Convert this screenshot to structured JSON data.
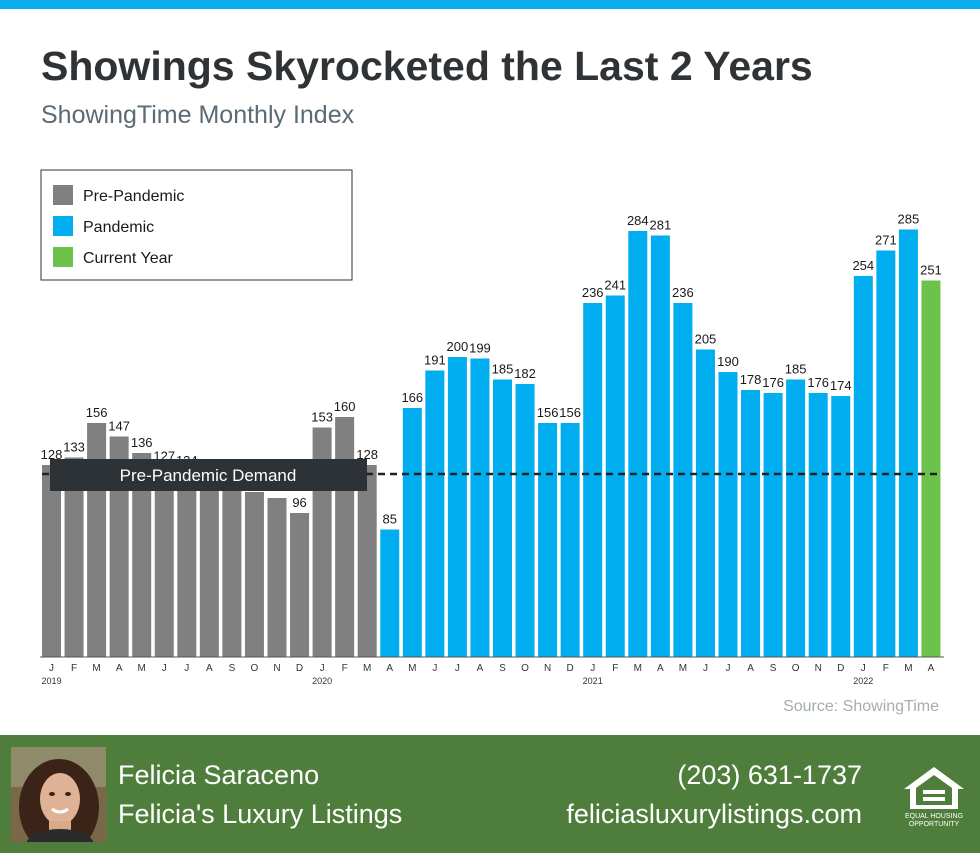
{
  "header": {
    "title": "Showings Skyrocketed the Last 2 Years",
    "subtitle": "ShowingTime Monthly Index"
  },
  "chart_data": {
    "type": "bar",
    "categories": [
      "J",
      "F",
      "M",
      "A",
      "M",
      "J",
      "J",
      "A",
      "S",
      "O",
      "N",
      "D",
      "J",
      "F",
      "M",
      "A",
      "M",
      "J",
      "J",
      "A",
      "S",
      "O",
      "N",
      "D",
      "J",
      "F",
      "M",
      "A",
      "M",
      "J",
      "J",
      "A",
      "S",
      "O",
      "N",
      "D",
      "J",
      "F",
      "M",
      "A"
    ],
    "year_labels": [
      {
        "index": 0,
        "label": "2019"
      },
      {
        "index": 12,
        "label": "2020"
      },
      {
        "index": 24,
        "label": "2021"
      },
      {
        "index": 36,
        "label": "2022"
      }
    ],
    "values": [
      128,
      133,
      156,
      147,
      136,
      127,
      124,
      122,
      122,
      110,
      106,
      96,
      153,
      160,
      128,
      85,
      166,
      191,
      200,
      199,
      185,
      182,
      156,
      156,
      236,
      241,
      284,
      281,
      236,
      205,
      190,
      178,
      176,
      185,
      176,
      174,
      254,
      271,
      285,
      251
    ],
    "value_labels": [
      "128",
      "133",
      "156",
      "147",
      "136",
      "127",
      "124",
      "122",
      "122",
      "",
      "",
      "96",
      "153",
      "160",
      "128",
      "85",
      "166",
      "191",
      "200",
      "199",
      "185",
      "182",
      "156",
      "156",
      "236",
      "241",
      "284",
      "281",
      "236",
      "205",
      "190",
      "178",
      "176",
      "185",
      "176",
      "174",
      "254",
      "271",
      "285",
      "251"
    ],
    "groups": [
      "pre",
      "pre",
      "pre",
      "pre",
      "pre",
      "pre",
      "pre",
      "pre",
      "pre",
      "pre",
      "pre",
      "pre",
      "pre",
      "pre",
      "pre",
      "pan",
      "pan",
      "pan",
      "pan",
      "pan",
      "pan",
      "pan",
      "pan",
      "pan",
      "pan",
      "pan",
      "pan",
      "pan",
      "pan",
      "pan",
      "pan",
      "pan",
      "pan",
      "pan",
      "pan",
      "pan",
      "pan",
      "pan",
      "pan",
      "cur"
    ],
    "legend": [
      {
        "key": "pre",
        "label": "Pre-Pandemic",
        "color": "#808080"
      },
      {
        "key": "pan",
        "label": "Pandemic",
        "color": "#00aeef"
      },
      {
        "key": "cur",
        "label": "Current Year",
        "color": "#6cc24a"
      }
    ],
    "legend_position": "top-left",
    "reference_line": {
      "value": 122,
      "label": "Pre-Pandemic Demand",
      "style": "dashed"
    },
    "ylim": [
      0,
      300
    ],
    "grid": false
  },
  "source": "Source: ShowingTime",
  "footer": {
    "name": "Felicia Saraceno",
    "company": "Felicia's Luxury Listings",
    "phone": "(203) 631-1737",
    "website": "feliciasluxurylistings.com",
    "badge_icon": "equal-housing-opportunity-icon",
    "badge_text_1": "EQUAL HOUSING",
    "badge_text_2": "OPPORTUNITY",
    "background_color": "#4f7e3c"
  }
}
